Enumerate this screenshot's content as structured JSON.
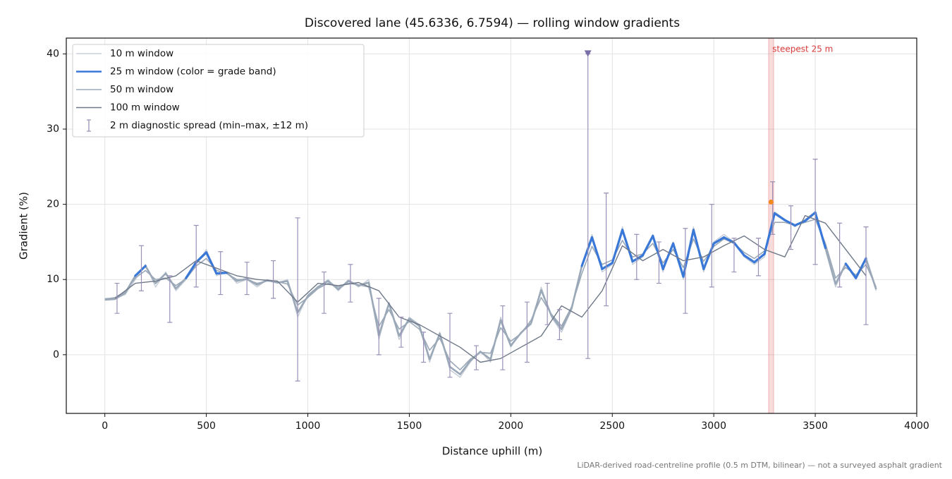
{
  "chart_data": {
    "type": "line",
    "title": "Discovered lane (45.6336, 6.7594) — rolling window gradients",
    "x_label": "Distance uphill (m)",
    "y_label": "Gradient (%)",
    "footnote": "LiDAR-derived road-centreline profile (0.5 m DTM, bilinear) — not a surveyed asphalt gradient",
    "xlim": [
      -190,
      4000
    ],
    "ylim": [
      -7.8,
      42.1
    ],
    "xticks": [
      0,
      500,
      1000,
      1500,
      2000,
      2500,
      3000,
      3500,
      4000
    ],
    "yticks": [
      0,
      10,
      20,
      30,
      40
    ],
    "grid": true,
    "legend": "upper left",
    "x": [
      0,
      50,
      100,
      150,
      200,
      250,
      300,
      350,
      400,
      450,
      500,
      550,
      600,
      650,
      700,
      750,
      800,
      850,
      900,
      950,
      1000,
      1050,
      1100,
      1150,
      1200,
      1250,
      1300,
      1350,
      1400,
      1450,
      1500,
      1550,
      1600,
      1650,
      1700,
      1750,
      1800,
      1850,
      1900,
      1950,
      2000,
      2050,
      2100,
      2150,
      2200,
      2250,
      2300,
      2350,
      2400,
      2450,
      2500,
      2550,
      2600,
      2650,
      2700,
      2750,
      2800,
      2850,
      2900,
      2950,
      3000,
      3050,
      3100,
      3150,
      3200,
      3250,
      3300,
      3350,
      3400,
      3450,
      3500,
      3550,
      3600,
      3650,
      3700,
      3750,
      3800
    ],
    "series": [
      {
        "name": "10 m window",
        "color": "#c2cad6",
        "width": 1.3,
        "values": [
          7.5,
          7.5,
          8,
          10,
          12,
          9,
          11,
          8.5,
          10,
          12,
          14,
          10.5,
          11,
          9.5,
          10,
          9,
          10,
          9.5,
          10,
          5,
          8,
          9,
          10,
          8.5,
          10,
          9,
          10,
          2,
          7,
          2,
          5,
          4,
          -1,
          3,
          -2,
          -3,
          -1,
          0.5,
          -1,
          5,
          1,
          3,
          4,
          9,
          5,
          3,
          6,
          12,
          16,
          11,
          12,
          17,
          12,
          13,
          16,
          11,
          15,
          10,
          17,
          11,
          15,
          16,
          15,
          13,
          12,
          13,
          19,
          18,
          17,
          18,
          19,
          14,
          9,
          12,
          10,
          13,
          8.5
        ]
      },
      {
        "name": "25 m window (color = grade band)",
        "color": "#3a78d8",
        "band_color": "#9aa8b8",
        "band_threshold": 10,
        "width": 2.6,
        "values": [
          7.3,
          7.4,
          8.2,
          10.5,
          11.8,
          9.5,
          10.8,
          8.8,
          10.2,
          12.3,
          13.6,
          10.8,
          10.9,
          9.8,
          10.1,
          9.3,
          9.9,
          9.6,
          9.8,
          5.6,
          7.8,
          9,
          9.8,
          8.7,
          9.8,
          9.2,
          9.6,
          2.6,
          6.8,
          2.5,
          4.8,
          3.8,
          -0.6,
          2.8,
          -1.6,
          -2.6,
          -0.8,
          0.4,
          -0.6,
          4.6,
          1.2,
          2.9,
          4.2,
          8.6,
          5.2,
          3.4,
          6.2,
          11.8,
          15.6,
          11.4,
          12.2,
          16.6,
          12.4,
          13.2,
          15.8,
          11.4,
          14.8,
          10.4,
          16.6,
          11.4,
          14.8,
          15.6,
          14.9,
          13.2,
          12.3,
          13.4,
          18.8,
          17.9,
          17.2,
          17.8,
          18.9,
          14.2,
          9.4,
          12.1,
          10.2,
          12.8,
          8.7
        ]
      },
      {
        "name": "50 m window",
        "color": "#9aa8b8",
        "width": 1.6,
        "values": [
          7.4,
          7.6,
          8.4,
          10.2,
          11.2,
          10,
          10.2,
          9.2,
          10.1,
          11.8,
          12.8,
          11.2,
          10.8,
          10,
          10,
          9.5,
          9.8,
          9.7,
          9.4,
          6.6,
          7.6,
          8.8,
          9.5,
          9,
          9.5,
          9.3,
          9,
          3.8,
          6,
          3.4,
          4.4,
          3.4,
          0.6,
          2.2,
          -0.8,
          -2,
          -0.6,
          0.3,
          0.2,
          3.6,
          1.8,
          2.8,
          4.6,
          7.6,
          5.4,
          3.8,
          6.4,
          10.8,
          14.4,
          12,
          12.6,
          15.2,
          13,
          13.4,
          14.8,
          12.2,
          14,
          11.6,
          15.4,
          12.4,
          14.4,
          15.4,
          14.8,
          13.6,
          12.8,
          13.8,
          17.6,
          17.6,
          17.2,
          17.6,
          18,
          14.8,
          10.2,
          11.6,
          10.6,
          12,
          9
        ]
      },
      {
        "name": "100 m window",
        "color": "#6e7888",
        "width": 1.4,
        "x": [
          50,
          150,
          250,
          350,
          450,
          550,
          650,
          750,
          850,
          950,
          1050,
          1150,
          1250,
          1350,
          1450,
          1550,
          1650,
          1750,
          1850,
          1950,
          2050,
          2150,
          2250,
          2350,
          2450,
          2550,
          2650,
          2750,
          2850,
          2950,
          3050,
          3150,
          3250,
          3350,
          3450,
          3550,
          3650,
          3750
        ],
        "values": [
          7.5,
          9.5,
          9.8,
          10.5,
          12.5,
          11.5,
          10.5,
          10,
          9.8,
          7,
          9.5,
          9.2,
          9.6,
          8.5,
          5,
          4,
          2.5,
          1,
          -1,
          -0.5,
          1,
          2.5,
          6.5,
          5,
          8.5,
          14.5,
          12.5,
          14,
          12.5,
          13,
          14.5,
          15.8,
          14,
          13,
          18.5,
          17.5,
          14,
          10.5
        ]
      }
    ],
    "spread": {
      "name": "2 m diagnostic spread (min–max, ±12 m)",
      "color": "#9a90b8",
      "x": [
        60,
        180,
        320,
        450,
        570,
        700,
        830,
        950,
        1080,
        1210,
        1350,
        1460,
        1570,
        1700,
        1830,
        1960,
        2080,
        2180,
        2240,
        2380,
        2470,
        2620,
        2730,
        2860,
        2990,
        3100,
        3220,
        3290,
        3380,
        3500,
        3620,
        3750
      ],
      "low": [
        5.5,
        8.5,
        4.3,
        9,
        8,
        8,
        7.5,
        -3.5,
        5.5,
        7,
        0,
        1,
        -1,
        -3,
        -2,
        -2,
        -1,
        4,
        2,
        -0.5,
        6.5,
        10,
        9.5,
        5.5,
        9,
        11,
        10.5,
        16,
        14,
        12,
        9,
        4
      ],
      "high": [
        9.5,
        14.5,
        10.5,
        17.2,
        13.7,
        12.3,
        12.5,
        18.2,
        11,
        12,
        7.5,
        5,
        3,
        5.5,
        1.2,
        6.5,
        7,
        9.5,
        6,
        40,
        21.5,
        16,
        15,
        16.8,
        20,
        15.5,
        15.5,
        23,
        19.8,
        26,
        17.5,
        17
      ]
    },
    "overflow_marker": {
      "x": 2380,
      "y": 40,
      "color": "#7a6ea8"
    },
    "steepest": {
      "label": "steepest 25 m",
      "x0": 3270,
      "x1": 3295,
      "point_x": 3282,
      "point_y": 20.3,
      "color": "#d93a3a",
      "point_color": "#f08a1c"
    }
  }
}
